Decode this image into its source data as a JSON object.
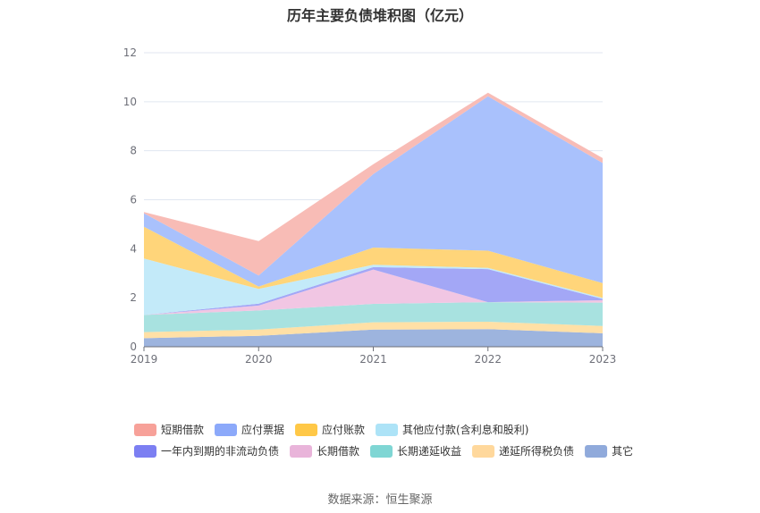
{
  "chart_data": {
    "type": "area",
    "stacked": true,
    "title": "历年主要负债堆积图（亿元）",
    "x": [
      "2019",
      "2020",
      "2021",
      "2022",
      "2023"
    ],
    "ylim": [
      0,
      12
    ],
    "yticks": [
      0,
      2,
      4,
      6,
      8,
      10,
      12
    ],
    "grid": true,
    "legend_position": "bottom",
    "series": [
      {
        "name": "其它",
        "color": "#9DB4DE",
        "values": [
          0.35,
          0.45,
          0.7,
          0.72,
          0.55
        ]
      },
      {
        "name": "递延所得税负债",
        "color": "#FFE0A6",
        "values": [
          0.25,
          0.25,
          0.3,
          0.3,
          0.3
        ]
      },
      {
        "name": "长期递延收益",
        "color": "#A8E2E0",
        "values": [
          0.7,
          0.78,
          0.75,
          0.8,
          0.95
        ]
      },
      {
        "name": "长期借款",
        "color": "#F1C6E3",
        "values": [
          0.0,
          0.2,
          1.4,
          0.0,
          0.1
        ]
      },
      {
        "name": "一年内到期的非流动负债",
        "color": "#A3A7F6",
        "values": [
          0.0,
          0.08,
          0.1,
          1.35,
          0.05
        ]
      },
      {
        "name": "其他应付款(含利息和股利)",
        "color": "#C3EAF9",
        "values": [
          2.3,
          0.6,
          0.1,
          0.05,
          0.05
        ]
      },
      {
        "name": "应付账款",
        "color": "#FFD57A",
        "values": [
          1.3,
          0.1,
          0.7,
          0.7,
          0.6
        ]
      },
      {
        "name": "应付票据",
        "color": "#A9C1FC",
        "values": [
          0.55,
          0.45,
          3.0,
          6.3,
          4.9
        ]
      },
      {
        "name": "短期借款",
        "color": "#F8BCB6",
        "values": [
          0.05,
          1.4,
          0.4,
          0.15,
          0.2
        ]
      }
    ]
  },
  "legend": {
    "rows": [
      [
        {
          "label": "短期借款",
          "color": "#F7A199"
        },
        {
          "label": "应付票据",
          "color": "#8CA9FA"
        },
        {
          "label": "应付账款",
          "color": "#FFC847"
        },
        {
          "label": "其他应付款(含利息和股利)",
          "color": "#ADE3F7"
        }
      ],
      [
        {
          "label": "一年内到期的非流动负债",
          "color": "#7C7FF2"
        },
        {
          "label": "长期借款",
          "color": "#E9B4DA"
        },
        {
          "label": "长期递延收益",
          "color": "#7FD6D4"
        },
        {
          "label": "递延所得税负债",
          "color": "#FFD89C"
        },
        {
          "label": "其它",
          "color": "#90AADB"
        }
      ]
    ]
  },
  "source": "数据来源：恒生聚源"
}
